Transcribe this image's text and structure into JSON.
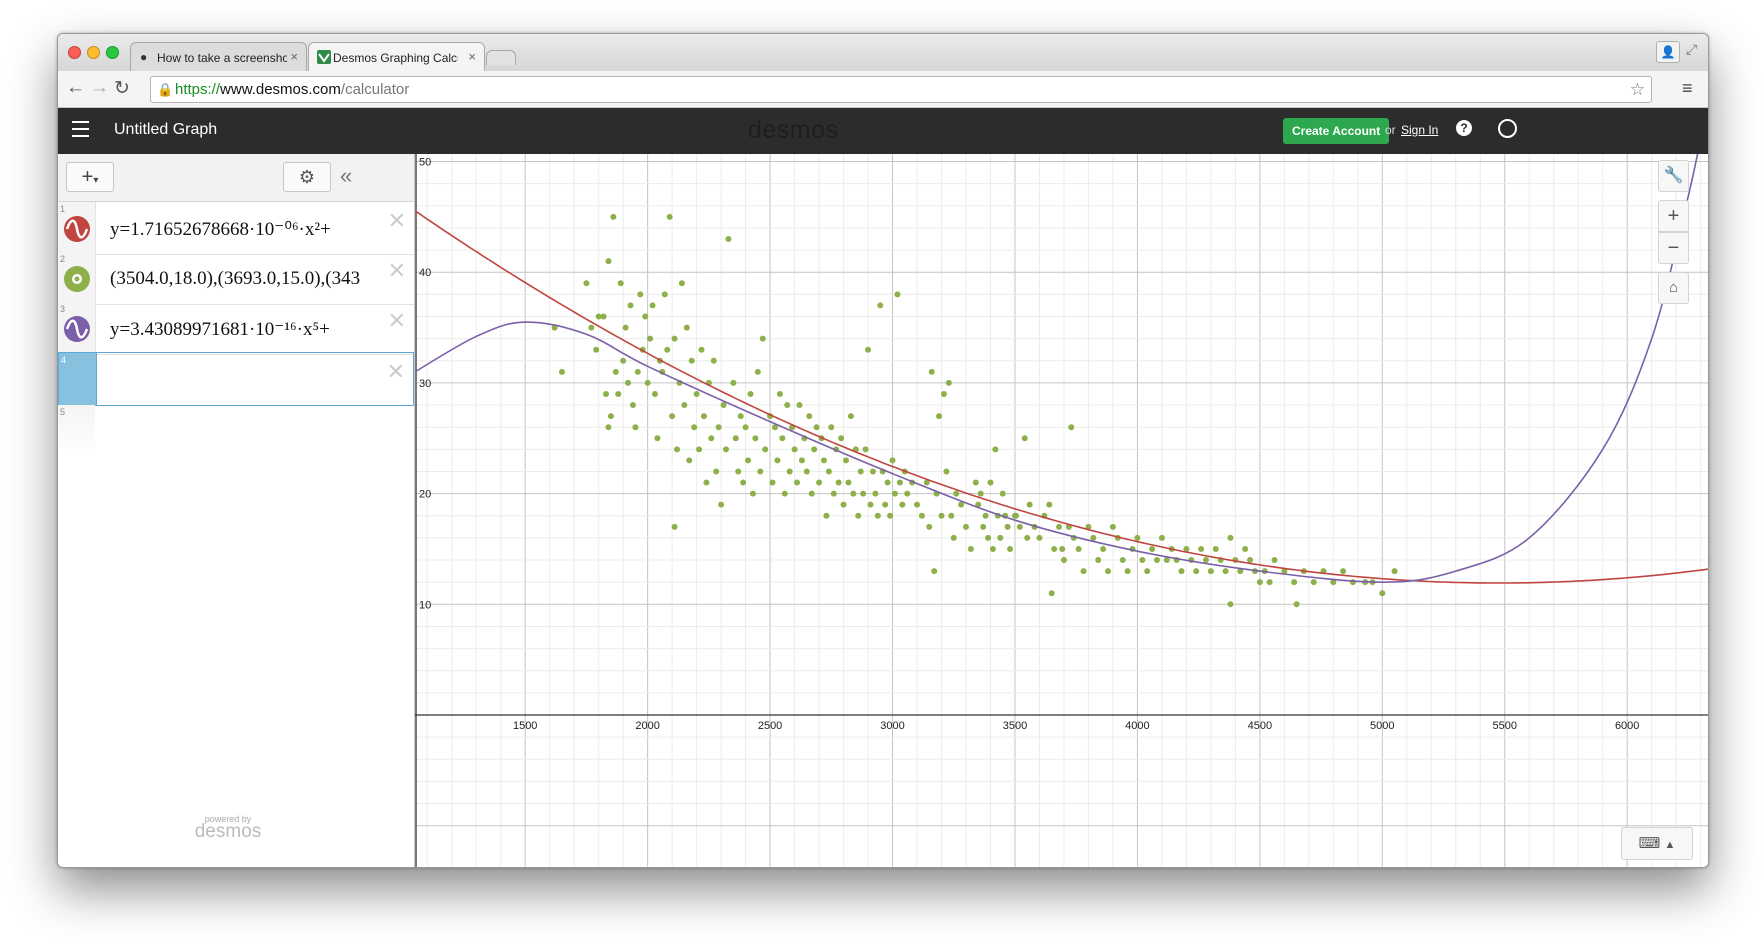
{
  "browser": {
    "tabs": [
      {
        "title": "How to take a screenshot o",
        "close": "×"
      },
      {
        "title": "Desmos Graphing Calculat",
        "close": "×"
      }
    ],
    "url": {
      "scheme": "https://",
      "host": "www.desmos.com",
      "path": "/calculator"
    }
  },
  "app": {
    "title": "Untitled Graph",
    "brand": "desmos",
    "create_account": "Create Account",
    "or": "or",
    "sign_in": "Sign In"
  },
  "expressions": [
    {
      "index": "1",
      "text": "y=1.71652678668·10⁻⁰⁶·x²+",
      "color": "#c0453f",
      "icon": "wave-icon"
    },
    {
      "index": "2",
      "text": "(3504.0,18.0),(3693.0,15.0),(343",
      "color": "#8db04b",
      "icon": "points-icon"
    },
    {
      "index": "3",
      "text": "y=3.43089971681·10⁻¹⁶·x⁵+",
      "color": "#7b5fa8",
      "icon": "wave-icon"
    },
    {
      "index": "4",
      "text": "",
      "color": "#88c1e0",
      "icon": ""
    },
    {
      "index": "5",
      "text": "",
      "color": "",
      "icon": ""
    }
  ],
  "footer": {
    "powered_by": "powered by",
    "brand": "desmos"
  },
  "chart_data": {
    "type": "scatter",
    "xlim": [
      1050,
      6330
    ],
    "ylim": [
      0,
      50
    ],
    "x_ticks": [
      1500,
      2000,
      2500,
      3000,
      3500,
      4000,
      4500,
      5000,
      5500,
      6000
    ],
    "y_ticks": [
      10,
      20,
      30,
      40,
      50
    ],
    "grid": true,
    "colors": {
      "points": "#8db04b",
      "quadratic": "#c0453f",
      "quintic": "#7b5fa8"
    },
    "points": [
      [
        1620,
        35
      ],
      [
        1650,
        31
      ],
      [
        1750,
        39
      ],
      [
        1770,
        35
      ],
      [
        1790,
        33
      ],
      [
        1800,
        36
      ],
      [
        1820,
        36
      ],
      [
        1830,
        29
      ],
      [
        1840,
        41
      ],
      [
        1840,
        26
      ],
      [
        1850,
        27
      ],
      [
        1860,
        45
      ],
      [
        1870,
        31
      ],
      [
        1880,
        29
      ],
      [
        1890,
        39
      ],
      [
        1900,
        32
      ],
      [
        1910,
        35
      ],
      [
        1920,
        30
      ],
      [
        1930,
        37
      ],
      [
        1940,
        28
      ],
      [
        1950,
        26
      ],
      [
        1960,
        31
      ],
      [
        1970,
        38
      ],
      [
        1980,
        33
      ],
      [
        1990,
        36
      ],
      [
        2000,
        30
      ],
      [
        2010,
        34
      ],
      [
        2020,
        37
      ],
      [
        2030,
        29
      ],
      [
        2040,
        25
      ],
      [
        2050,
        32
      ],
      [
        2060,
        31
      ],
      [
        2070,
        38
      ],
      [
        2080,
        33
      ],
      [
        2090,
        45
      ],
      [
        2100,
        27
      ],
      [
        2110,
        34
      ],
      [
        2120,
        24
      ],
      [
        2130,
        30
      ],
      [
        2140,
        39
      ],
      [
        2150,
        28
      ],
      [
        2160,
        35
      ],
      [
        2170,
        23
      ],
      [
        2180,
        32
      ],
      [
        2190,
        26
      ],
      [
        2200,
        29
      ],
      [
        2210,
        24
      ],
      [
        2220,
        33
      ],
      [
        2230,
        27
      ],
      [
        2240,
        21
      ],
      [
        2250,
        30
      ],
      [
        2260,
        25
      ],
      [
        2270,
        32
      ],
      [
        2280,
        22
      ],
      [
        2290,
        26
      ],
      [
        2300,
        19
      ],
      [
        2310,
        28
      ],
      [
        2320,
        24
      ],
      [
        2330,
        43
      ],
      [
        2350,
        30
      ],
      [
        2360,
        25
      ],
      [
        2370,
        22
      ],
      [
        2380,
        27
      ],
      [
        2390,
        21
      ],
      [
        2400,
        26
      ],
      [
        2410,
        23
      ],
      [
        2420,
        29
      ],
      [
        2430,
        20
      ],
      [
        2440,
        25
      ],
      [
        2450,
        31
      ],
      [
        2460,
        22
      ],
      [
        2470,
        34
      ],
      [
        2480,
        24
      ],
      [
        2500,
        27
      ],
      [
        2510,
        21
      ],
      [
        2520,
        26
      ],
      [
        2530,
        23
      ],
      [
        2540,
        29
      ],
      [
        2550,
        25
      ],
      [
        2560,
        20
      ],
      [
        2570,
        28
      ],
      [
        2580,
        22
      ],
      [
        2590,
        26
      ],
      [
        2600,
        24
      ],
      [
        2610,
        21
      ],
      [
        2620,
        28
      ],
      [
        2630,
        23
      ],
      [
        2640,
        25
      ],
      [
        2650,
        22
      ],
      [
        2660,
        27
      ],
      [
        2670,
        20
      ],
      [
        2680,
        24
      ],
      [
        2690,
        26
      ],
      [
        2700,
        21
      ],
      [
        2710,
        25
      ],
      [
        2720,
        23
      ],
      [
        2730,
        18
      ],
      [
        2740,
        22
      ],
      [
        2750,
        26
      ],
      [
        2760,
        20
      ],
      [
        2770,
        24
      ],
      [
        2780,
        21
      ],
      [
        2790,
        25
      ],
      [
        2800,
        19
      ],
      [
        2810,
        23
      ],
      [
        2820,
        21
      ],
      [
        2830,
        27
      ],
      [
        2840,
        20
      ],
      [
        2850,
        24
      ],
      [
        2860,
        18
      ],
      [
        2870,
        22
      ],
      [
        2880,
        20
      ],
      [
        2890,
        24
      ],
      [
        2900,
        33
      ],
      [
        2910,
        19
      ],
      [
        2920,
        22
      ],
      [
        2930,
        20
      ],
      [
        2940,
        18
      ],
      [
        2950,
        37
      ],
      [
        2960,
        22
      ],
      [
        2970,
        19
      ],
      [
        2980,
        21
      ],
      [
        2990,
        18
      ],
      [
        3000,
        23
      ],
      [
        3010,
        20
      ],
      [
        3020,
        38
      ],
      [
        3030,
        21
      ],
      [
        3040,
        19
      ],
      [
        3050,
        22
      ],
      [
        3060,
        20
      ],
      [
        3080,
        21
      ],
      [
        3100,
        19
      ],
      [
        3120,
        18
      ],
      [
        3140,
        21
      ],
      [
        3150,
        17
      ],
      [
        3160,
        31
      ],
      [
        3170,
        13
      ],
      [
        3180,
        20
      ],
      [
        3190,
        27
      ],
      [
        3200,
        18
      ],
      [
        3210,
        29
      ],
      [
        3220,
        22
      ],
      [
        3230,
        30
      ],
      [
        3240,
        18
      ],
      [
        3250,
        16
      ],
      [
        3260,
        20
      ],
      [
        3280,
        19
      ],
      [
        3300,
        17
      ],
      [
        3320,
        15
      ],
      [
        3340,
        21
      ],
      [
        3350,
        19
      ],
      [
        3360,
        20
      ],
      [
        3370,
        17
      ],
      [
        3380,
        18
      ],
      [
        3390,
        16
      ],
      [
        3400,
        21
      ],
      [
        3410,
        15
      ],
      [
        3420,
        24
      ],
      [
        3430,
        18
      ],
      [
        3440,
        16
      ],
      [
        3450,
        20
      ],
      [
        3460,
        18
      ],
      [
        3470,
        17
      ],
      [
        3480,
        15
      ],
      [
        3500,
        18
      ],
      [
        3504,
        18
      ],
      [
        3520,
        17
      ],
      [
        3540,
        25
      ],
      [
        3560,
        19
      ],
      [
        3580,
        17
      ],
      [
        3600,
        16
      ],
      [
        3620,
        18
      ],
      [
        3640,
        19
      ],
      [
        3660,
        15
      ],
      [
        3680,
        17
      ],
      [
        3693,
        15
      ],
      [
        3700,
        14
      ],
      [
        3720,
        17
      ],
      [
        3730,
        26
      ],
      [
        3740,
        16
      ],
      [
        3760,
        15
      ],
      [
        3780,
        13
      ],
      [
        3800,
        17
      ],
      [
        3820,
        16
      ],
      [
        3840,
        14
      ],
      [
        3860,
        15
      ],
      [
        3880,
        13
      ],
      [
        3900,
        17
      ],
      [
        3920,
        16
      ],
      [
        3940,
        14
      ],
      [
        3960,
        13
      ],
      [
        3980,
        15
      ],
      [
        4000,
        16
      ],
      [
        4020,
        14
      ],
      [
        4040,
        13
      ],
      [
        4060,
        15
      ],
      [
        4080,
        14
      ],
      [
        4100,
        16
      ],
      [
        4120,
        14
      ],
      [
        4140,
        15
      ],
      [
        4160,
        14
      ],
      [
        4180,
        13
      ],
      [
        4200,
        15
      ],
      [
        4220,
        14
      ],
      [
        4240,
        13
      ],
      [
        4260,
        15
      ],
      [
        4280,
        14
      ],
      [
        4300,
        13
      ],
      [
        4320,
        15
      ],
      [
        4340,
        14
      ],
      [
        4360,
        13
      ],
      [
        4380,
        16
      ],
      [
        4400,
        14
      ],
      [
        4420,
        13
      ],
      [
        4440,
        15
      ],
      [
        4460,
        14
      ],
      [
        4480,
        13
      ],
      [
        4500,
        12
      ],
      [
        4520,
        13
      ],
      [
        4540,
        12
      ],
      [
        4560,
        14
      ],
      [
        4600,
        13
      ],
      [
        4640,
        12
      ],
      [
        4680,
        13
      ],
      [
        4720,
        12
      ],
      [
        4760,
        13
      ],
      [
        4800,
        12
      ],
      [
        4840,
        13
      ],
      [
        4880,
        12
      ],
      [
        4930,
        12
      ],
      [
        4960,
        12
      ],
      [
        5000,
        11
      ],
      [
        5050,
        13
      ],
      [
        3460,
        18
      ],
      [
        3550,
        16
      ],
      [
        4650,
        10
      ],
      [
        4380,
        10
      ],
      [
        2110,
        17
      ],
      [
        3650,
        11
      ]
    ],
    "quadratic": {
      "a": 1.71652678668e-06,
      "b": -0.0188,
      "c": 63.4
    },
    "quintic": {
      "label": "y=3.43089971681·10^-16·x^5+",
      "anchors": [
        [
          1050,
          31
        ],
        [
          1300,
          34.2
        ],
        [
          1500,
          35.5
        ],
        [
          1750,
          34.4
        ],
        [
          2000,
          31.5
        ],
        [
          2500,
          26.5
        ],
        [
          3000,
          21.8
        ],
        [
          3500,
          17.6
        ],
        [
          4000,
          14.8
        ],
        [
          4500,
          13
        ],
        [
          5000,
          12
        ],
        [
          5300,
          13
        ],
        [
          5600,
          16
        ],
        [
          5900,
          24
        ],
        [
          6100,
          34
        ],
        [
          6240,
          46
        ],
        [
          6300,
          52
        ]
      ]
    }
  }
}
